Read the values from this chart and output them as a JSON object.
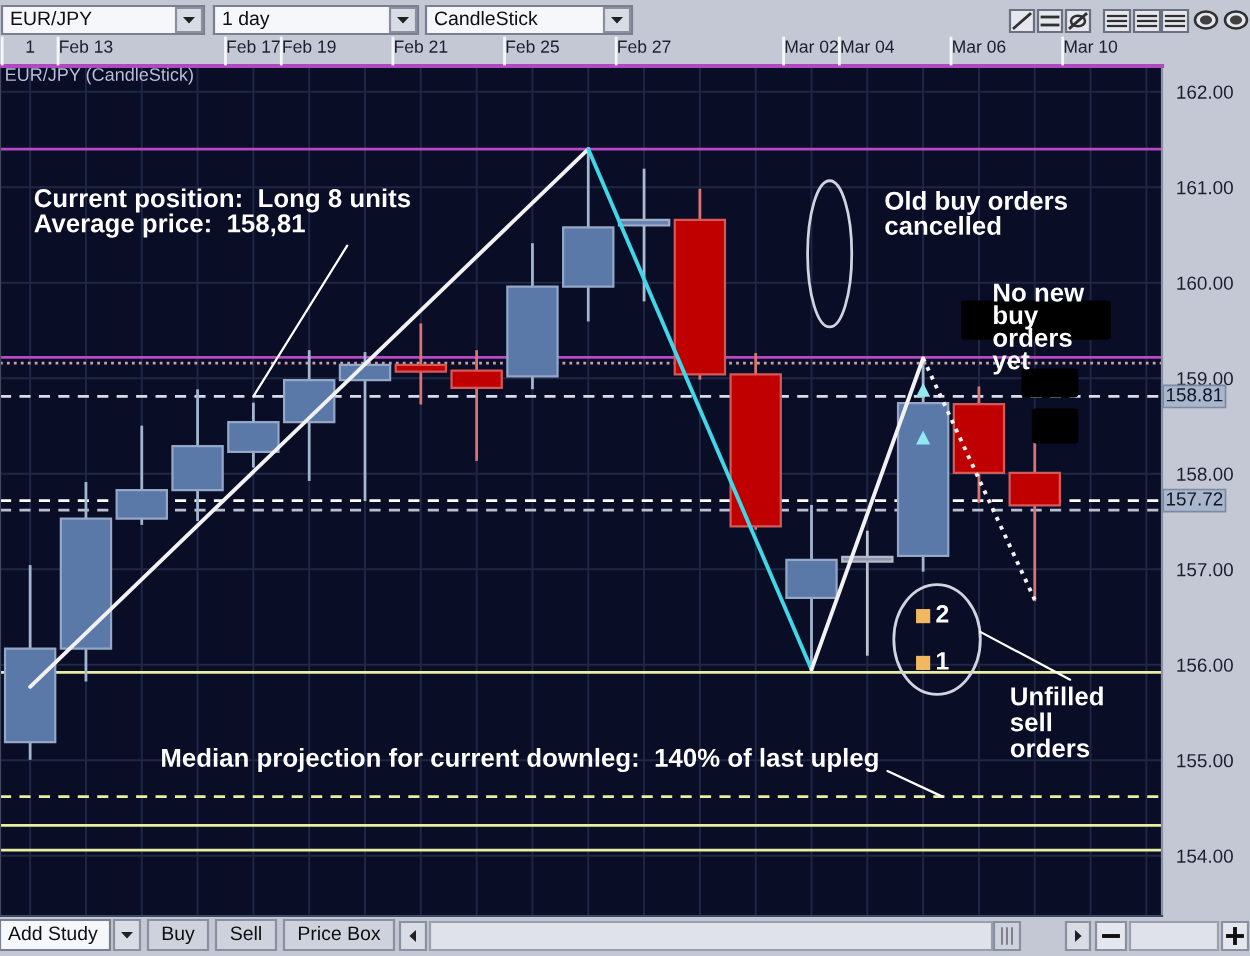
{
  "chart_data": {
    "type": "candlestick",
    "title": "EUR/JPY (CandleStick)",
    "categories": [
      "1",
      "Feb 13",
      null,
      null,
      "Feb 17",
      "Feb 19",
      null,
      "Feb 21",
      null,
      "Feb 25",
      null,
      "Feb 27",
      null,
      null,
      "Mar 02",
      "Mar 04",
      null,
      "Mar 06",
      null,
      "Mar 10",
      null
    ],
    "ohlc": [
      [
        155.19,
        157.03,
        155.02,
        156.17
      ],
      [
        156.17,
        157.9,
        155.84,
        157.53
      ],
      [
        157.53,
        158.49,
        157.48,
        157.83
      ],
      [
        157.83,
        158.87,
        157.52,
        158.29
      ],
      [
        158.23,
        158.73,
        158.08,
        158.54
      ],
      [
        158.54,
        159.28,
        157.94,
        158.98
      ],
      [
        158.98,
        159.26,
        157.73,
        159.14
      ],
      [
        159.14,
        159.56,
        158.74,
        159.07
      ],
      [
        159.08,
        159.28,
        158.15,
        158.9
      ],
      [
        159.02,
        160.4,
        158.9,
        159.96
      ],
      [
        159.96,
        161.4,
        159.61,
        160.58
      ],
      [
        160.6,
        161.18,
        159.82,
        160.66
      ],
      [
        160.66,
        160.97,
        159.0,
        159.04
      ],
      [
        159.04,
        159.25,
        157.43,
        157.45
      ],
      [
        156.7,
        157.66,
        155.95,
        157.1
      ],
      [
        157.08,
        157.39,
        156.11,
        157.13
      ],
      [
        157.14,
        159.21,
        156.99,
        158.74
      ],
      [
        158.73,
        158.9,
        157.71,
        158.01
      ],
      [
        158.01,
        158.34,
        156.68,
        157.67
      ],
      null,
      null
    ],
    "colors": [
      "#5a78a8",
      "#5a78a8",
      "#5a78a8",
      "#5a78a8",
      "#5a78a8",
      "#5a78a8",
      "#5a78a8",
      "#c00000",
      "#c00000",
      "#5a78a8",
      "#5a78a8",
      "#6c84b0",
      "#c00000",
      "#c00000",
      "#5a78a8",
      "#8a94aa",
      "#5a78a8",
      "#c00000",
      "#c00000",
      null,
      null
    ],
    "series": [
      {
        "type": "line",
        "color": "#f2f2f2",
        "line_style": "solid",
        "values": [
          155.77,
          null,
          null,
          null,
          null,
          null,
          null,
          null,
          null,
          null,
          161.4,
          null,
          null,
          null,
          null,
          null,
          null,
          null,
          null,
          null,
          null
        ]
      },
      {
        "type": "line",
        "color": "#40d8e8",
        "line_style": "solid",
        "values": [
          null,
          null,
          null,
          null,
          null,
          null,
          null,
          null,
          null,
          null,
          161.4,
          null,
          null,
          null,
          155.95,
          null,
          null,
          null,
          null,
          null,
          null
        ]
      },
      {
        "type": "line",
        "color": "#f2f2f2",
        "line_style": "solid",
        "values": [
          null,
          null,
          null,
          null,
          null,
          null,
          null,
          null,
          null,
          null,
          null,
          null,
          null,
          null,
          155.95,
          null,
          159.21,
          null,
          null,
          null,
          null
        ]
      },
      {
        "type": "line",
        "color": "#f2f2f2",
        "line_style": "dotted",
        "values": [
          null,
          null,
          null,
          null,
          null,
          null,
          null,
          null,
          null,
          null,
          null,
          null,
          null,
          null,
          null,
          null,
          159.21,
          null,
          156.68,
          null,
          null
        ]
      },
      {
        "type": "scatter",
        "color": "#90e8f0",
        "marker": "triangle",
        "values": [
          null,
          null,
          null,
          null,
          null,
          null,
          null,
          null,
          null,
          null,
          null,
          null,
          null,
          null,
          null,
          null,
          158.88,
          null,
          null,
          null,
          null
        ]
      },
      {
        "type": "scatter",
        "color": "#90e8f0",
        "marker": "triangle",
        "values": [
          null,
          null,
          null,
          null,
          null,
          null,
          null,
          null,
          null,
          null,
          null,
          null,
          null,
          null,
          null,
          null,
          158.38,
          null,
          null,
          null,
          null
        ]
      },
      {
        "type": "scatter",
        "color": "#f0b860",
        "marker": "square",
        "values": [
          null,
          null,
          null,
          null,
          null,
          null,
          null,
          null,
          null,
          null,
          null,
          null,
          null,
          null,
          null,
          null,
          156.51,
          null,
          null,
          null,
          null
        ]
      },
      {
        "type": "scatter",
        "color": "#f0b860",
        "marker": "square",
        "values": [
          null,
          null,
          null,
          null,
          null,
          null,
          null,
          null,
          null,
          null,
          null,
          null,
          null,
          null,
          null,
          null,
          156.02,
          null,
          null,
          null,
          null
        ]
      }
    ],
    "ylim": [
      153.37,
      162.27
    ],
    "yticks": [
      {
        "value": 154,
        "label": "154.00"
      },
      {
        "value": 155,
        "label": "155.00"
      },
      {
        "value": 156,
        "label": "156.00"
      },
      {
        "value": 157,
        "label": "157.00"
      },
      {
        "value": 158,
        "label": "158.00"
      },
      {
        "value": 159,
        "label": "159.00"
      },
      {
        "value": 160,
        "label": "160.00"
      },
      {
        "value": 161,
        "label": "161.00"
      },
      {
        "value": 162,
        "label": "162.00"
      }
    ],
    "ref_lines": [
      {
        "axis": "y",
        "value": 161.4,
        "color": "#b848c8",
        "line_style": "solid"
      },
      {
        "axis": "y",
        "value": 159.22,
        "color": "#b848c8",
        "line_style": "solid"
      },
      {
        "axis": "y",
        "value": 159.16,
        "color": "#c8a0b0",
        "line_style": "dotted"
      },
      {
        "axis": "y",
        "value": 158.81,
        "label": "158.81",
        "color": "#d8dce8",
        "line_style": "dashed"
      },
      {
        "axis": "y",
        "value": 157.72,
        "label": "157.72",
        "color": "#ffffff",
        "line_style": "dashed"
      },
      {
        "axis": "y",
        "value": 157.62,
        "color": "#b8c0d0",
        "line_style": "dashed"
      },
      {
        "axis": "y",
        "value": 155.92,
        "color": "#e8f0a0",
        "line_style": "solid"
      },
      {
        "axis": "y",
        "value": 154.62,
        "color": "#e8f0a0",
        "line_style": "dashed"
      },
      {
        "axis": "y",
        "value": 154.32,
        "color": "#e8f0a0",
        "line_style": "solid"
      },
      {
        "axis": "y",
        "value": 154.06,
        "color": "#e8f0a0",
        "line_style": "solid"
      }
    ],
    "grid": true,
    "annotations": [
      {
        "text": "Current position:  Long 8 units\nAverage price:  158,81",
        "x": "Feb 17",
        "y": 158.81
      },
      "Old buy orders\ncancelled",
      "No new\nbuy\norders\nyet",
      "Unfilled\nsell\norders",
      {
        "text": "Median projection for current downleg:  140% of last upleg",
        "y": 154.62
      },
      "EUR/JPY",
      "1 day",
      "CandleStick",
      "Add Study",
      "Buy",
      "Sell",
      "Price Box",
      "2",
      "1"
    ]
  }
}
